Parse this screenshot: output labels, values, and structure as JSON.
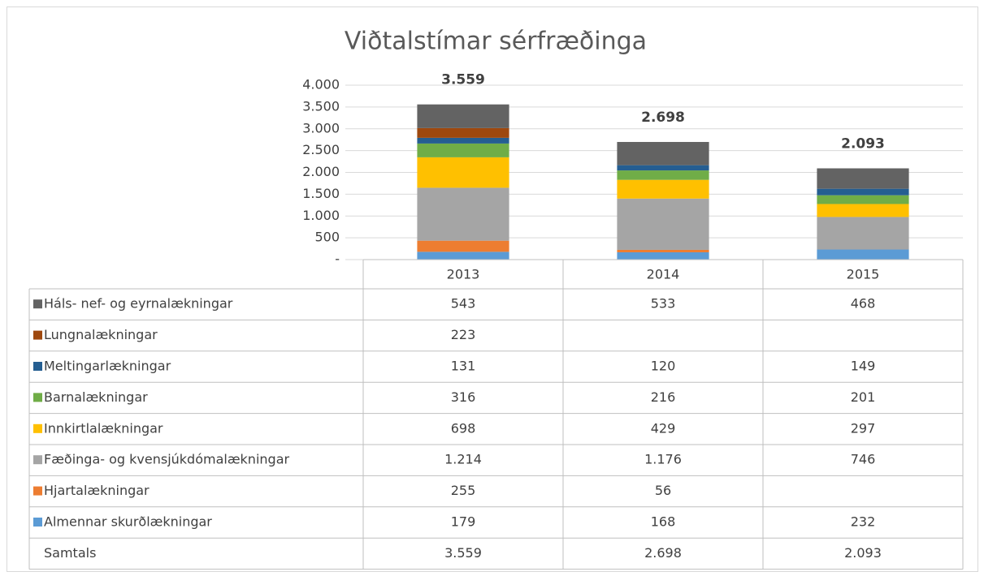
{
  "chart_data": {
    "type": "stacked_bar",
    "title": "Viðtalstímar sérfræðinga",
    "categories": [
      "2013",
      "2014",
      "2015"
    ],
    "ylim": [
      0,
      4000
    ],
    "yticks": [
      {
        "value": 0,
        "label": "-"
      },
      500,
      {
        "value": 1000,
        "label": "1.000"
      },
      {
        "value": 1500,
        "label": "1.500"
      },
      {
        "value": 2000,
        "label": "2.000"
      },
      {
        "value": 2500,
        "label": "2.500"
      },
      {
        "value": 3000,
        "label": "3.000"
      },
      {
        "value": 3500,
        "label": "3.500"
      },
      {
        "value": 4000,
        "label": "4.000"
      }
    ],
    "grid": true,
    "series": [
      {
        "name": "Almennar skurðlækningar",
        "color": "#5b9bd5",
        "values": [
          179,
          168,
          232
        ]
      },
      {
        "name": "Hjartalækningar",
        "color": "#ed7d31",
        "values": [
          255,
          56,
          null
        ]
      },
      {
        "name": "Fæðinga- og kvensjúkdómalækningar",
        "color": "#a5a5a5",
        "values": [
          1214,
          1176,
          746
        ],
        "value_labels": [
          "1.214",
          "1.176",
          "746"
        ]
      },
      {
        "name": "Innkirtlalækningar",
        "color": "#ffc000",
        "values": [
          698,
          429,
          297
        ]
      },
      {
        "name": "Barnalækningar",
        "color": "#70ad47",
        "values": [
          316,
          216,
          201
        ]
      },
      {
        "name": "Meltingarlækningar",
        "color": "#255e91",
        "values": [
          131,
          120,
          149
        ]
      },
      {
        "name": "Lungnalækningar",
        "color": "#9e480e",
        "values": [
          223,
          null,
          null
        ]
      },
      {
        "name": "Háls- nef- og eyrnalækningar",
        "color": "#636363",
        "values": [
          543,
          533,
          468
        ]
      }
    ],
    "totals": {
      "name": "Samtals",
      "values": [
        3559,
        2698,
        2093
      ],
      "value_labels": [
        "3.559",
        "2.698",
        "2.093"
      ]
    }
  }
}
